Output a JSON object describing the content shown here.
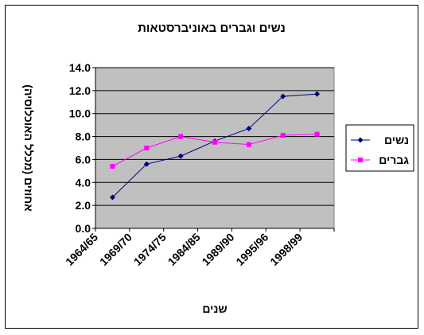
{
  "chart_data": {
    "type": "line",
    "title": "נשים וגברים באוניברסטאות",
    "xlabel": "שנים",
    "ylabel": "אחוזים (מכלל האוכלוסיה)",
    "categories": [
      "1964/65",
      "1969/70",
      "1974/75",
      "1984/85",
      "1989/90",
      "1995/96",
      "1998/99"
    ],
    "ylim": [
      0,
      14
    ],
    "ytick_labels": [
      "0.0",
      "2.0",
      "4.0",
      "6.0",
      "8.0",
      "10.0",
      "12.0",
      "14.0"
    ],
    "grid": true,
    "plot_background": "#c0c0c0",
    "legend_position": "right",
    "series": [
      {
        "name": "נשים",
        "color": "#000080",
        "marker": "diamond",
        "values": [
          2.7,
          5.6,
          6.3,
          7.6,
          8.7,
          11.5,
          11.7
        ]
      },
      {
        "name": "גברים",
        "color": "#ff00ff",
        "marker": "square",
        "values": [
          5.4,
          7.0,
          8.0,
          7.5,
          7.3,
          8.1,
          8.2
        ]
      }
    ]
  }
}
